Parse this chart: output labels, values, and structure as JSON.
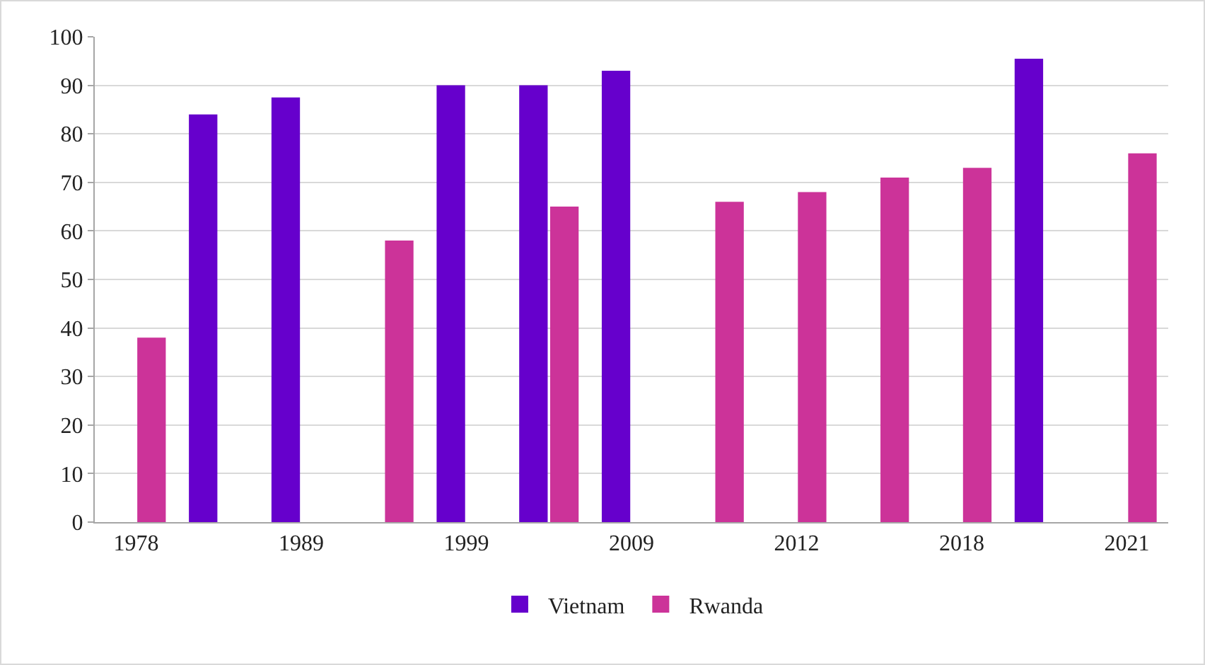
{
  "chart_data": {
    "type": "bar",
    "categories": [
      "1978",
      null,
      "1989",
      null,
      "1999",
      null,
      "2009",
      null,
      "2012",
      null,
      "2018",
      null,
      "2021"
    ],
    "series": [
      {
        "name": "Vietnam",
        "color": "#6600cc",
        "values": [
          null,
          84,
          87.5,
          null,
          90,
          90,
          93,
          null,
          null,
          null,
          null,
          95.5,
          null
        ]
      },
      {
        "name": "Rwanda",
        "color": "#cc3399",
        "values": [
          38,
          null,
          null,
          58,
          null,
          65,
          null,
          66,
          68,
          71,
          73,
          null,
          76
        ]
      }
    ],
    "ylim": [
      0,
      100
    ],
    "yticks": [
      0,
      10,
      20,
      30,
      40,
      50,
      60,
      70,
      80,
      90,
      100
    ],
    "grid": "y",
    "legend": "bottom"
  }
}
